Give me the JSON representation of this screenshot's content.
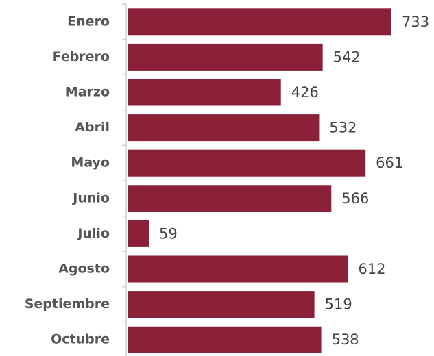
{
  "chart_data": {
    "type": "barh",
    "categories": [
      "Enero",
      "Febrero",
      "Marzo",
      "Abril",
      "Mayo",
      "Junio",
      "Julio",
      "Agosto",
      "Septiembre",
      "Octubre"
    ],
    "values": [
      733,
      542,
      426,
      532,
      661,
      566,
      59,
      612,
      519,
      538
    ],
    "color": "#8b2039"
  }
}
